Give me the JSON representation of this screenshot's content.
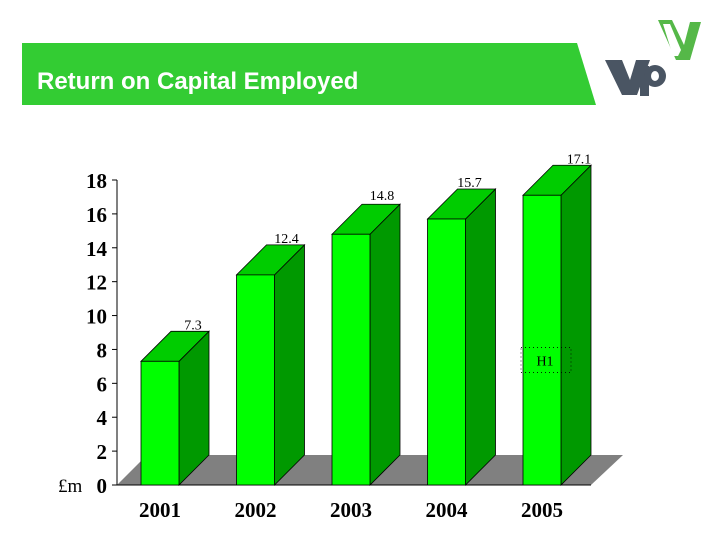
{
  "slide": {
    "title": "Return on Capital Employed"
  },
  "logo": {
    "text": "Vp",
    "mark": "y"
  },
  "colors": {
    "band_green": "#33cc33",
    "bar_front": "#00ff00",
    "bar_side": "#009900",
    "bar_top": "#00cc00",
    "floor": "#808080",
    "logo_gray": "#4a5563",
    "logo_green": "#55b848"
  },
  "chart_data": {
    "type": "bar",
    "title": "",
    "xlabel": "",
    "ylabel": "£m",
    "categories": [
      "2001",
      "2002",
      "2003",
      "2004",
      "2005"
    ],
    "values": [
      7.3,
      12.4,
      14.8,
      15.7,
      17.1
    ],
    "data_labels": [
      "7.3",
      "12.4",
      "14.8",
      "15.7",
      "17.1"
    ],
    "ylim": [
      0,
      18
    ],
    "yticks": [
      0,
      2,
      4,
      6,
      8,
      10,
      12,
      14,
      16,
      18
    ],
    "grid": false,
    "annotations": [
      {
        "category": "2005",
        "value": 8,
        "text": "H1"
      }
    ]
  }
}
